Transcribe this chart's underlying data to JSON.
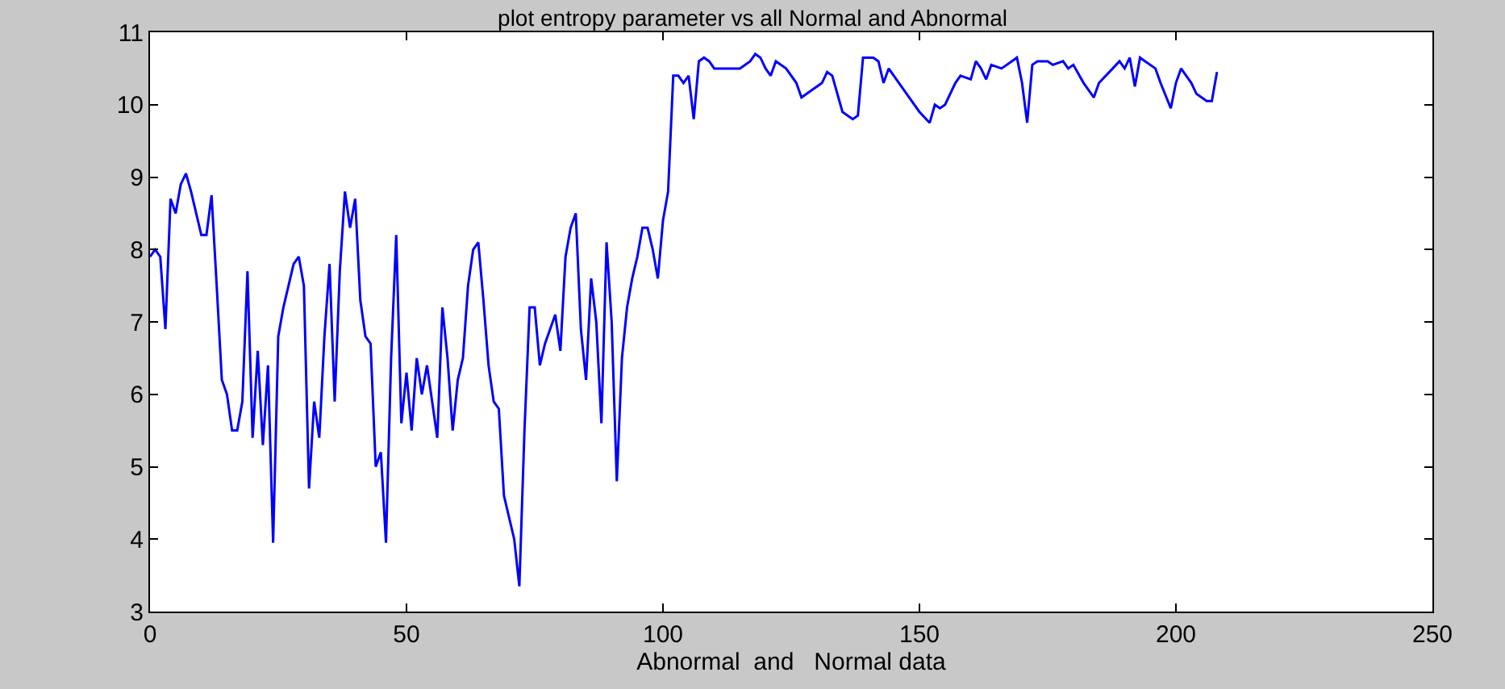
{
  "chart_data": {
    "type": "line",
    "title": "plot entropy parameter vs all Normal and Abnormal",
    "xlabel": "Abnormal  and   Normal data",
    "x": [
      0,
      1,
      2,
      3,
      4,
      5,
      6,
      7,
      8,
      9,
      10,
      11,
      12,
      13,
      14,
      15,
      16,
      17,
      18,
      19,
      20,
      21,
      22,
      23,
      24,
      25,
      26,
      27,
      28,
      29,
      30,
      31,
      32,
      33,
      34,
      35,
      36,
      37,
      38,
      39,
      40,
      41,
      42,
      43,
      44,
      45,
      46,
      47,
      48,
      49,
      50,
      51,
      52,
      53,
      54,
      55,
      56,
      57,
      58,
      59,
      60,
      61,
      62,
      63,
      64,
      65,
      66,
      67,
      68,
      69,
      70,
      71,
      72,
      73,
      74,
      75,
      76,
      77,
      78,
      79,
      80,
      81,
      82,
      83,
      84,
      85,
      86,
      87,
      88,
      89,
      90,
      91,
      92,
      93,
      94,
      95,
      96,
      97,
      98,
      99,
      100,
      101,
      102,
      103,
      104,
      105,
      106,
      107,
      108,
      109,
      110,
      115,
      117,
      118,
      119,
      120,
      121,
      122,
      124,
      126,
      127,
      129,
      131,
      132,
      133,
      135,
      137,
      138,
      139,
      141,
      142,
      143,
      144,
      145,
      146,
      150,
      152,
      153,
      154,
      155,
      157,
      158,
      160,
      161,
      162,
      163,
      164,
      166,
      168,
      169,
      170,
      171,
      172,
      173,
      175,
      176,
      178,
      179,
      180,
      182,
      184,
      185,
      187,
      189,
      190,
      191,
      192,
      193,
      194,
      196,
      197,
      199,
      200,
      201,
      203,
      204,
      205,
      206,
      207,
      208
    ],
    "series": [
      {
        "color": "#0000ff",
        "values": [
          7.9,
          8.0,
          7.9,
          6.9,
          8.7,
          8.5,
          8.9,
          9.05,
          8.8,
          8.5,
          8.2,
          8.2,
          8.75,
          7.5,
          6.2,
          6.0,
          5.5,
          5.5,
          5.9,
          7.7,
          5.4,
          6.6,
          5.3,
          6.4,
          3.95,
          6.8,
          7.2,
          7.5,
          7.8,
          7.9,
          7.5,
          4.7,
          5.9,
          5.4,
          6.8,
          7.8,
          5.9,
          7.7,
          8.8,
          8.3,
          8.7,
          7.3,
          6.8,
          6.7,
          5.0,
          5.2,
          3.95,
          6.5,
          8.2,
          5.6,
          6.3,
          5.5,
          6.5,
          6.0,
          6.4,
          5.9,
          5.4,
          7.2,
          6.5,
          5.5,
          6.2,
          6.5,
          7.5,
          8.0,
          8.1,
          7.3,
          6.4,
          5.9,
          5.8,
          4.6,
          4.3,
          4.0,
          3.35,
          5.5,
          7.2,
          7.2,
          6.4,
          6.7,
          6.9,
          7.1,
          6.6,
          7.9,
          8.3,
          8.5,
          6.9,
          6.2,
          7.6,
          7.0,
          5.6,
          8.1,
          7.0,
          4.8,
          6.5,
          7.2,
          7.6,
          7.9,
          8.3,
          8.3,
          8.0,
          7.6,
          8.4,
          8.8,
          10.4,
          10.4,
          10.3,
          10.4,
          9.8,
          10.6,
          10.65,
          10.6,
          10.5,
          10.5,
          10.6,
          10.7,
          10.65,
          10.5,
          10.4,
          10.6,
          10.5,
          10.3,
          10.1,
          10.2,
          10.3,
          10.45,
          10.4,
          9.9,
          9.8,
          9.85,
          10.65,
          10.65,
          10.6,
          10.3,
          10.5,
          10.4,
          10.3,
          9.9,
          9.75,
          10.0,
          9.95,
          10.0,
          10.3,
          10.4,
          10.35,
          10.6,
          10.5,
          10.35,
          10.55,
          10.5,
          10.6,
          10.65,
          10.3,
          9.75,
          10.55,
          10.6,
          10.6,
          10.55,
          10.6,
          10.5,
          10.55,
          10.3,
          10.1,
          10.3,
          10.45,
          10.6,
          10.5,
          10.65,
          10.25,
          10.65,
          10.6,
          10.5,
          10.3,
          9.95,
          10.3,
          10.5,
          10.3,
          10.15,
          10.1,
          10.05,
          10.05,
          10.45
        ]
      }
    ],
    "xlim": [
      0,
      250
    ],
    "xticks": [
      0,
      50,
      100,
      150,
      200,
      250
    ],
    "ylim": [
      3,
      11
    ],
    "yticks": [
      3,
      4,
      5,
      6,
      7,
      8,
      9,
      10,
      11
    ],
    "marker": "none",
    "line_style": "solid"
  }
}
